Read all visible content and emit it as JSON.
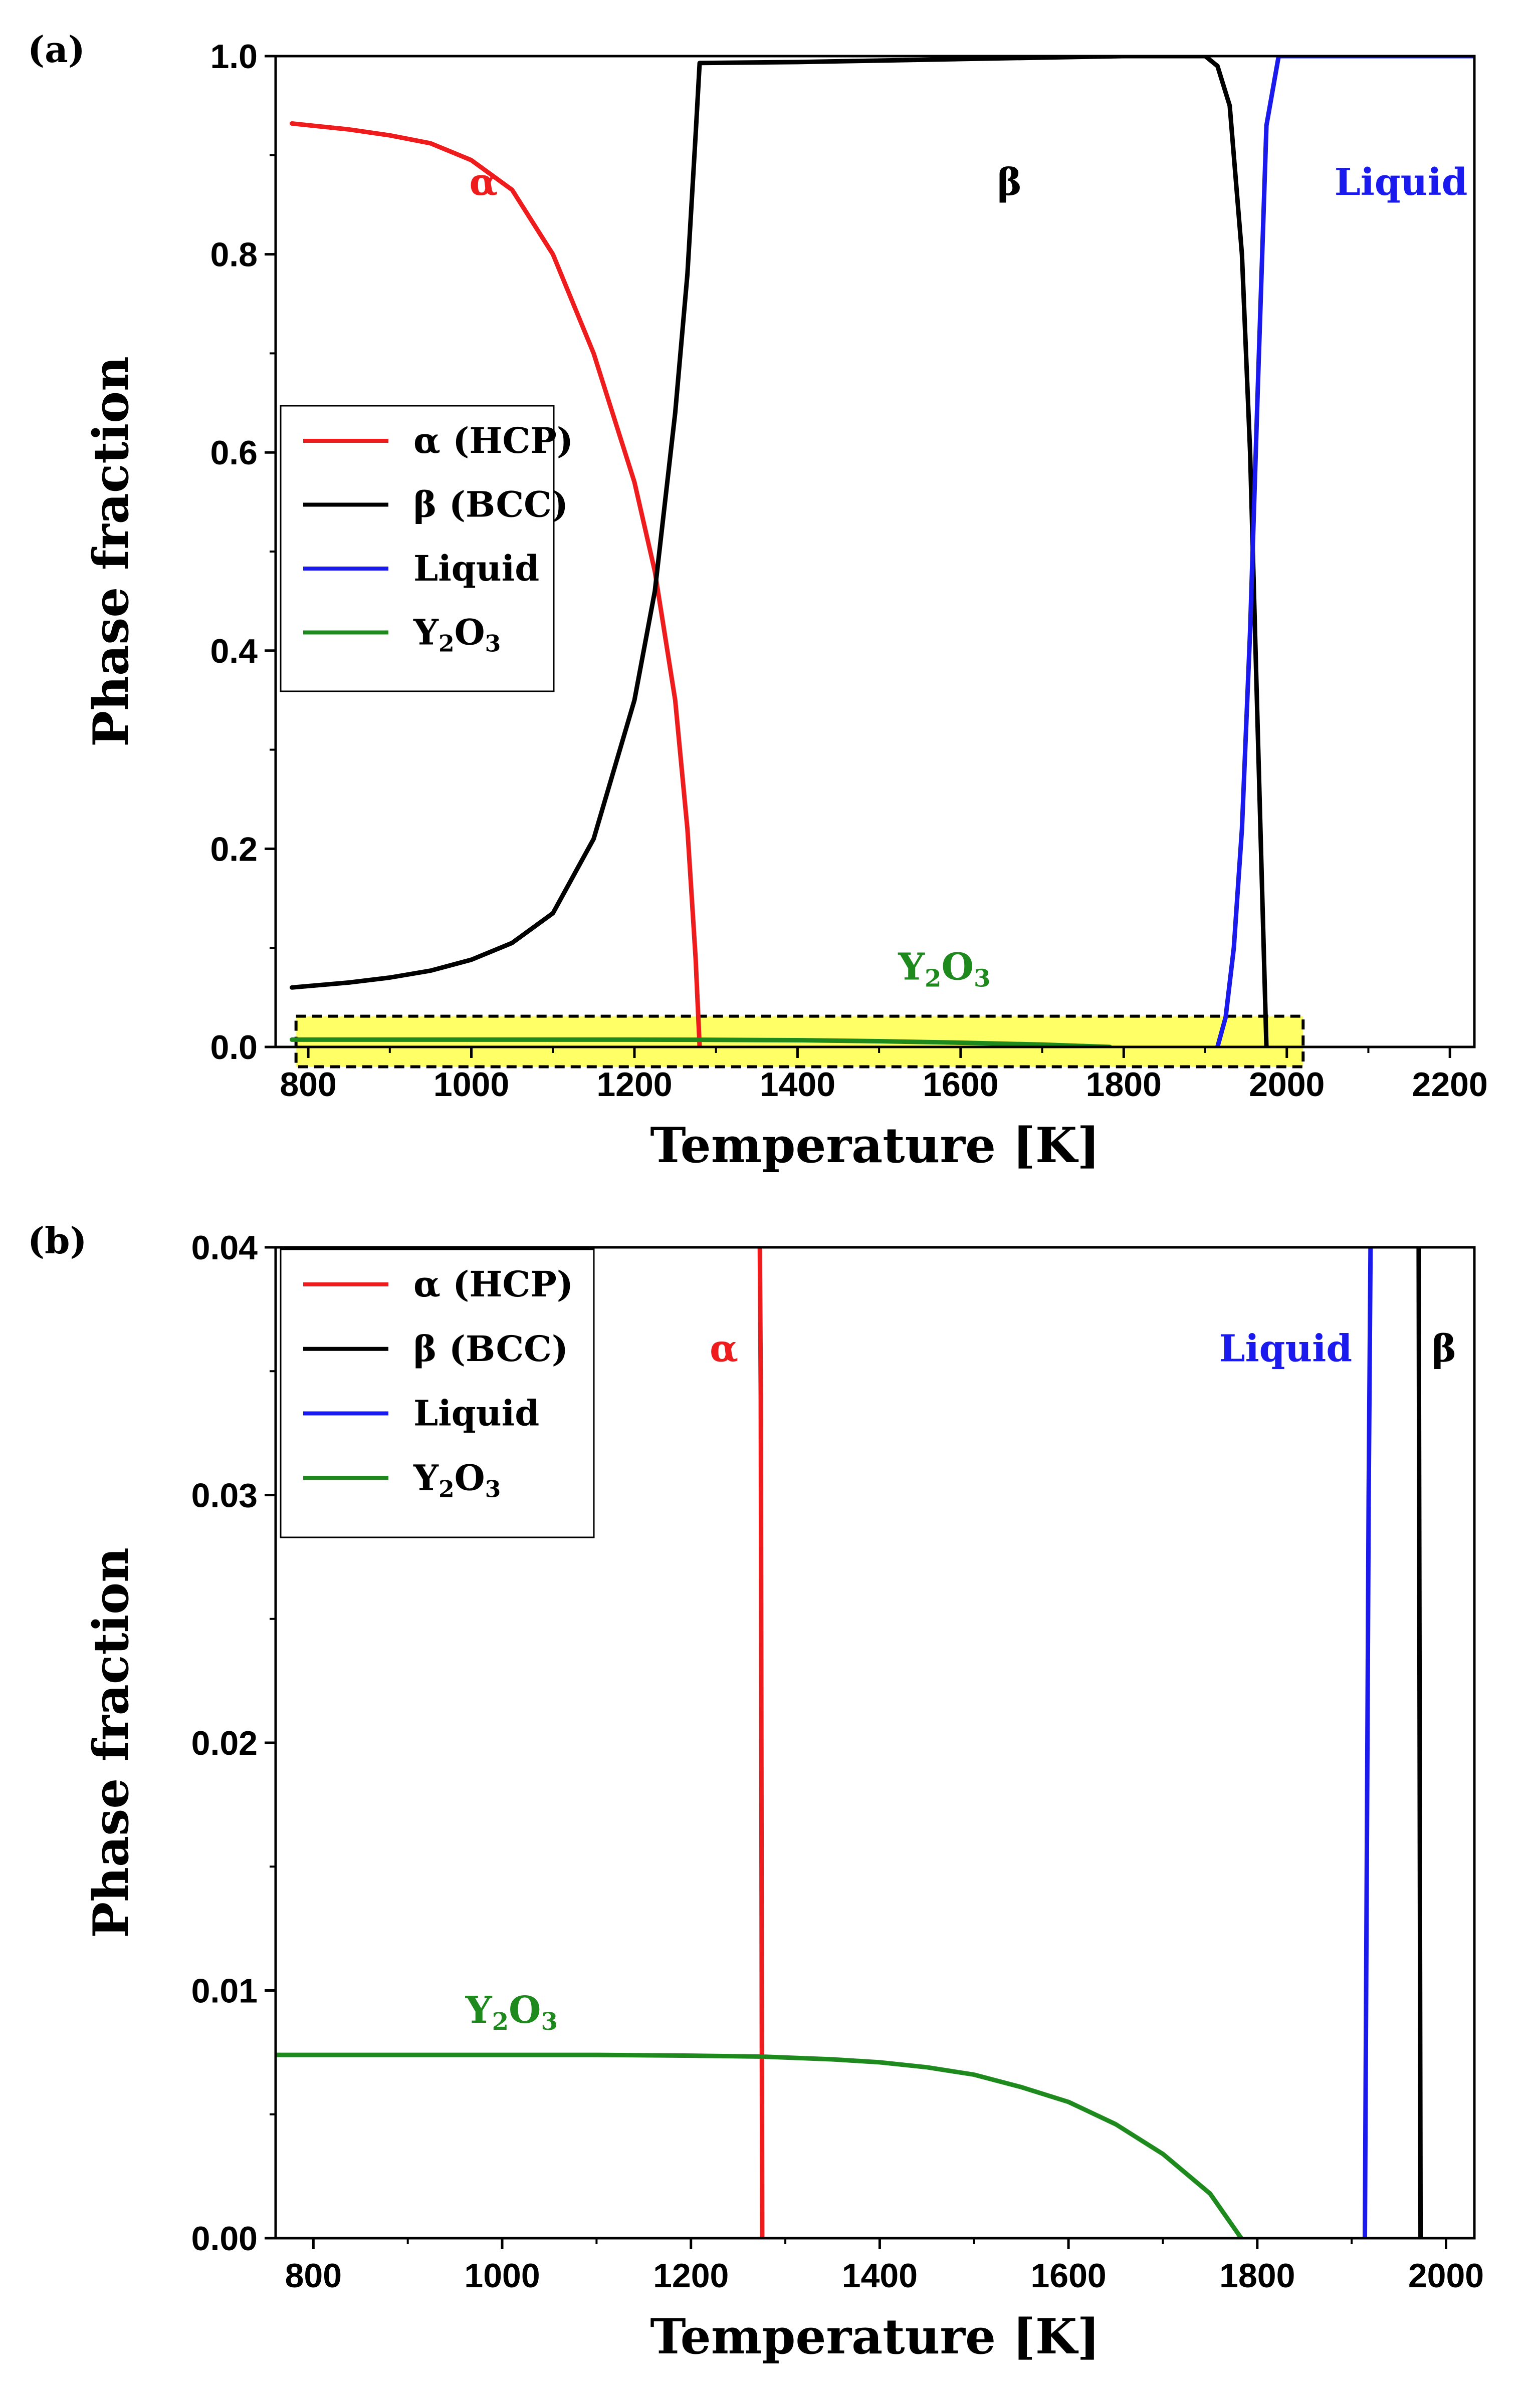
{
  "chart_data": [
    {
      "type": "line",
      "panel_label": "(a)",
      "xlabel": "Temperature [K]",
      "ylabel": "Phase fraction",
      "xlim": [
        760,
        2230
      ],
      "ylim": [
        0,
        1.0
      ],
      "x_ticks": [
        800,
        1000,
        1200,
        1400,
        1600,
        1800,
        2000,
        2200
      ],
      "x_tick_labels": [
        "800",
        "1000",
        "1200",
        "1400",
        "1600",
        "1800",
        "2000",
        "2200"
      ],
      "y_ticks": [
        0.0,
        0.2,
        0.4,
        0.6,
        0.8,
        1.0
      ],
      "y_tick_labels": [
        "0.0",
        "0.2",
        "0.4",
        "0.6",
        "0.8",
        "1.0"
      ],
      "legend_position": "middle-left",
      "highlight_box": {
        "x": [
          785,
          2020
        ],
        "y": [
          -0.02,
          0.031
        ],
        "color": "#ffff66"
      },
      "series": [
        {
          "name": "α (HCP)",
          "color": "#ee1c1c",
          "x": [
            780,
            850,
            900,
            950,
            1000,
            1050,
            1100,
            1150,
            1200,
            1225,
            1250,
            1265,
            1275,
            1280
          ],
          "y": [
            0.932,
            0.926,
            0.92,
            0.912,
            0.895,
            0.865,
            0.8,
            0.7,
            0.57,
            0.48,
            0.35,
            0.22,
            0.09,
            0.0
          ]
        },
        {
          "name": "β (BCC)",
          "color": "#000000",
          "x": [
            780,
            850,
            900,
            950,
            1000,
            1050,
            1100,
            1150,
            1200,
            1225,
            1250,
            1265,
            1275,
            1280,
            1400,
            1600,
            1800,
            1900,
            1915,
            1930,
            1945,
            1955,
            1965,
            1970,
            1975
          ],
          "y": [
            0.06,
            0.065,
            0.07,
            0.077,
            0.088,
            0.105,
            0.135,
            0.21,
            0.35,
            0.46,
            0.64,
            0.78,
            0.92,
            0.993,
            0.994,
            0.997,
            1.0,
            1.0,
            0.99,
            0.95,
            0.8,
            0.6,
            0.3,
            0.15,
            0.0
          ]
        },
        {
          "name": "Liquid",
          "color": "#1a1aee",
          "x": [
            1915,
            1925,
            1935,
            1945,
            1955,
            1965,
            1975,
            1990,
            2230
          ],
          "y": [
            0.0,
            0.03,
            0.1,
            0.22,
            0.42,
            0.68,
            0.93,
            1.0,
            1.0
          ]
        },
        {
          "name": "Y2O3",
          "color": "#1e8a1e",
          "x": [
            780,
            1000,
            1200,
            1280,
            1400,
            1500,
            1600,
            1700,
            1783
          ],
          "y": [
            0.0074,
            0.0074,
            0.0074,
            0.0073,
            0.0068,
            0.0058,
            0.0043,
            0.0024,
            0.0
          ]
        }
      ],
      "annotations": [
        {
          "text": "α",
          "x": 1015,
          "y": 0.86,
          "color": "#ee1c1c"
        },
        {
          "text": "β",
          "x": 1660,
          "y": 0.86,
          "color": "#000000"
        },
        {
          "text": "Liquid",
          "x": 2140,
          "y": 0.86,
          "color": "#1a1aee"
        },
        {
          "text_main": "Y",
          "text_sub": "2",
          "text_main2": "O",
          "text_sub2": "3",
          "x": 1580,
          "y": 0.068,
          "color": "#1e8a1e"
        }
      ]
    },
    {
      "type": "line",
      "panel_label": "(b)",
      "xlabel": "Temperature [K]",
      "ylabel": "Phase fraction",
      "xlim": [
        760,
        2030
      ],
      "ylim": [
        0,
        0.04
      ],
      "x_ticks": [
        800,
        1000,
        1200,
        1400,
        1600,
        1800,
        2000
      ],
      "x_tick_labels": [
        "800",
        "1000",
        "1200",
        "1400",
        "1600",
        "1800",
        "2000"
      ],
      "y_ticks": [
        0.0,
        0.01,
        0.02,
        0.03,
        0.04
      ],
      "y_tick_labels": [
        "0.00",
        "0.01",
        "0.02",
        "0.03",
        "0.04"
      ],
      "legend_position": "top-left",
      "series": [
        {
          "name": "α (HCP)",
          "color": "#ee1c1c",
          "x": [
            1273,
            1274,
            1275,
            1275.5
          ],
          "y": [
            0.04,
            0.034,
            0.01,
            0.0
          ]
        },
        {
          "name": "β (BCC)",
          "color": "#000000",
          "x": [
            1971,
            1972,
            1973
          ],
          "y": [
            0.04,
            0.02,
            0.0
          ]
        },
        {
          "name": "Liquid",
          "color": "#1a1aee",
          "x": [
            1914,
            1916,
            1918,
            1920
          ],
          "y": [
            0.0,
            0.015,
            0.03,
            0.04
          ]
        },
        {
          "name": "Y2O3",
          "color": "#1e8a1e",
          "x": [
            760,
            900,
            1000,
            1100,
            1200,
            1275,
            1350,
            1400,
            1450,
            1500,
            1550,
            1600,
            1650,
            1700,
            1750,
            1783
          ],
          "y": [
            0.0074,
            0.0074,
            0.0074,
            0.0074,
            0.00737,
            0.00733,
            0.00722,
            0.0071,
            0.0069,
            0.0066,
            0.0061,
            0.0055,
            0.0046,
            0.0034,
            0.0018,
            0.0
          ]
        }
      ],
      "annotations": [
        {
          "text": "α",
          "x": 1235,
          "y": 0.0354,
          "color": "#ee1c1c"
        },
        {
          "text": "Liquid",
          "x": 1830,
          "y": 0.0354,
          "color": "#1a1aee"
        },
        {
          "text": "β",
          "x": 1998,
          "y": 0.0354,
          "color": "#000000"
        },
        {
          "text_main": "Y",
          "text_sub": "2",
          "text_main2": "O",
          "text_sub2": "3",
          "x": 1010,
          "y": 0.0087,
          "color": "#1e8a1e"
        }
      ]
    }
  ]
}
